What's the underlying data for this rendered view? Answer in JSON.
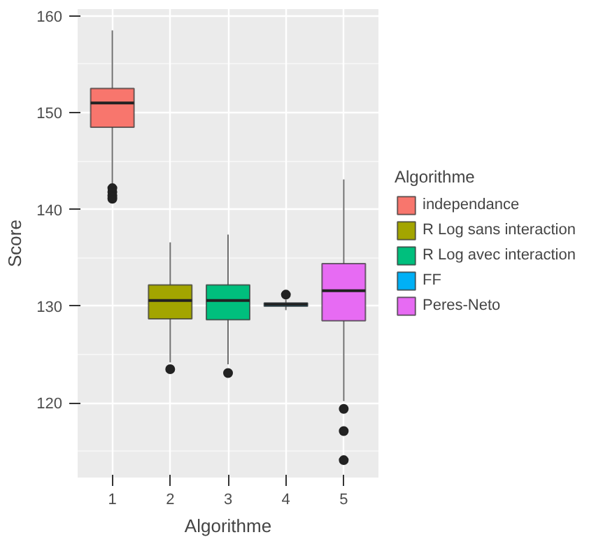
{
  "chart_data": {
    "type": "box",
    "xlabel": "Algorithme",
    "ylabel": "Score",
    "legend_title": "Algorithme",
    "categories": [
      "1",
      "2",
      "3",
      "4",
      "5"
    ],
    "ylim": [
      112.3,
      160.7
    ],
    "yticks": [
      120,
      130,
      140,
      150,
      160
    ],
    "grid": true,
    "legend": "right",
    "series": [
      {
        "name": "independance",
        "color": "#f8766d",
        "boxes": [
          {
            "low": 142.7,
            "q1": 148.5,
            "median": 151.0,
            "q3": 152.5,
            "high": 158.5,
            "outliers": [
              142.2,
              141.8,
              141.4,
              141.1
            ]
          },
          null,
          null,
          null,
          null
        ]
      },
      {
        "name": "R Log sans interaction",
        "color": "#a3a500",
        "boxes": [
          null,
          {
            "low": 124.2,
            "q1": 128.7,
            "median": 130.6,
            "q3": 132.2,
            "high": 136.6,
            "outliers": [
              123.5
            ]
          },
          null,
          null,
          null
        ]
      },
      {
        "name": "R Log avec interaction",
        "color": "#00bf7d",
        "boxes": [
          null,
          null,
          {
            "low": 124.0,
            "q1": 128.6,
            "median": 130.6,
            "q3": 132.2,
            "high": 137.4,
            "outliers": [
              123.1
            ]
          },
          null,
          null
        ]
      },
      {
        "name": "FF",
        "color": "#00b0f6",
        "boxes": [
          null,
          null,
          null,
          {
            "low": 129.6,
            "q1": 130.0,
            "median": 130.2,
            "q3": 130.35,
            "high": 130.7,
            "outliers": [
              131.2
            ]
          },
          null
        ]
      },
      {
        "name": "Peres-Neto",
        "color": "#e76bf3",
        "boxes": [
          null,
          null,
          null,
          null,
          {
            "low": 120.2,
            "q1": 128.5,
            "median": 131.6,
            "q3": 134.4,
            "high": 143.1,
            "outliers": [
              119.4,
              117.1,
              114.1
            ]
          }
        ]
      }
    ]
  }
}
